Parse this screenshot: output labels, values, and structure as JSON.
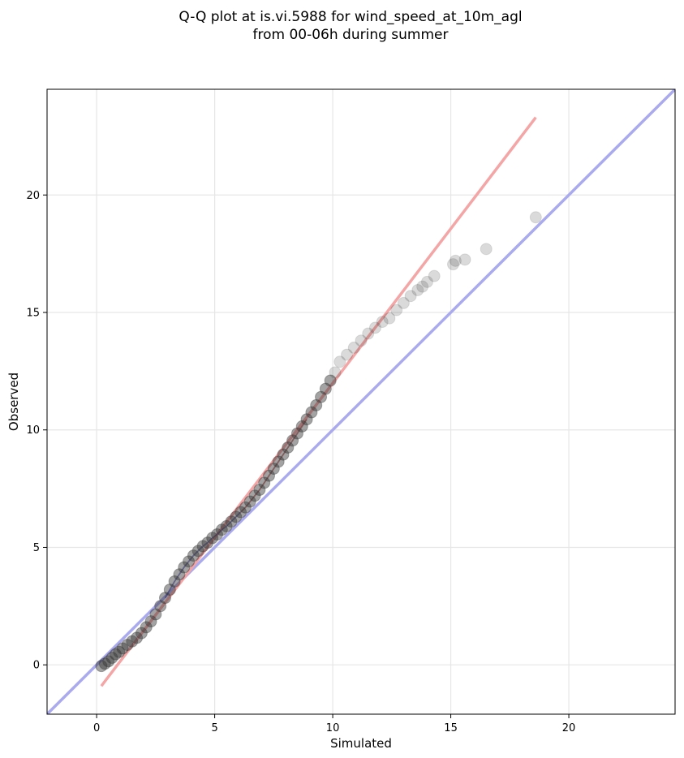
{
  "chart_data": {
    "type": "scatter",
    "title": "Q-Q plot at is.vi.5988 for wind_speed_at_10m_agl",
    "subtitle": "from 00-06h during summer",
    "xlabel": "Simulated",
    "ylabel": "Observed",
    "xlim": [
      -2.1,
      24.5
    ],
    "ylim": [
      -2.1,
      24.5
    ],
    "xticks": [
      0,
      5,
      10,
      15,
      20
    ],
    "yticks": [
      0,
      5,
      10,
      15,
      20
    ],
    "grid": true,
    "colors": {
      "points": "#333333",
      "reference_line": "#aaaaee",
      "fit_line": "#f4a6a6"
    },
    "reference_line": {
      "slope": 1,
      "intercept": 0
    },
    "fit_line": {
      "x": [
        0.2,
        18.6
      ],
      "y": [
        -0.9,
        23.3
      ]
    },
    "points": {
      "x": [
        0.2,
        0.35,
        0.5,
        0.65,
        0.8,
        0.95,
        1.1,
        1.3,
        1.5,
        1.7,
        1.9,
        2.1,
        2.3,
        2.5,
        2.7,
        2.9,
        3.1,
        3.3,
        3.5,
        3.7,
        3.9,
        4.1,
        4.3,
        4.5,
        4.7,
        4.9,
        5.1,
        5.3,
        5.5,
        5.7,
        5.9,
        6.1,
        6.3,
        6.5,
        6.7,
        6.9,
        7.1,
        7.3,
        7.5,
        7.7,
        7.9,
        8.1,
        8.3,
        8.5,
        8.7,
        8.9,
        9.1,
        9.3,
        9.5,
        9.7,
        9.9,
        10.1,
        10.3,
        10.6,
        10.9,
        11.2,
        11.5,
        11.8,
        12.1,
        12.4,
        12.7,
        13.0,
        13.3,
        13.6,
        13.8,
        14.0,
        14.3,
        15.1,
        15.2,
        15.6,
        16.5,
        18.6
      ],
      "y": [
        -0.05,
        0.05,
        0.15,
        0.3,
        0.45,
        0.55,
        0.7,
        0.85,
        1.0,
        1.15,
        1.35,
        1.6,
        1.85,
        2.15,
        2.5,
        2.85,
        3.2,
        3.55,
        3.85,
        4.15,
        4.4,
        4.65,
        4.85,
        5.05,
        5.2,
        5.4,
        5.55,
        5.75,
        5.9,
        6.1,
        6.3,
        6.5,
        6.7,
        6.95,
        7.2,
        7.45,
        7.75,
        8.05,
        8.35,
        8.65,
        8.95,
        9.25,
        9.55,
        9.85,
        10.15,
        10.45,
        10.75,
        11.05,
        11.4,
        11.75,
        12.1,
        12.45,
        12.9,
        13.2,
        13.5,
        13.8,
        14.1,
        14.35,
        14.6,
        14.75,
        15.1,
        15.4,
        15.7,
        15.95,
        16.1,
        16.3,
        16.55,
        17.05,
        17.2,
        17.25,
        17.7,
        19.05
      ]
    }
  }
}
